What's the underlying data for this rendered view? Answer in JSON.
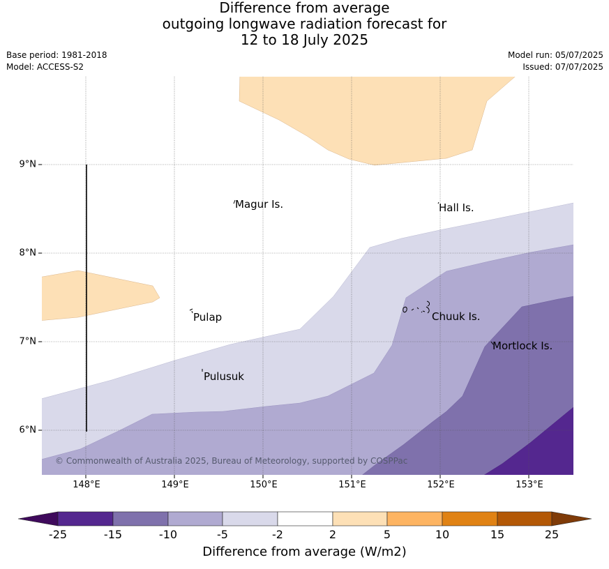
{
  "title": {
    "line1": "Difference from average",
    "line2": "outgoing longwave radiation forecast for",
    "line3": "12 to 18 July 2025"
  },
  "meta": {
    "base_period": "Base period: 1981-2018",
    "model": "Model: ACCESS-S2",
    "model_run": "Model run: 05/07/2025",
    "issued": "Issued: 07/07/2025"
  },
  "map": {
    "lon_range": [
      147.5,
      153.5
    ],
    "lat_range": [
      5.5,
      10.0
    ],
    "lat_ticks": [
      "9°N",
      "8°N",
      "7°N",
      "6°N"
    ],
    "lon_ticks": [
      "148°E",
      "149°E",
      "150°E",
      "151°E",
      "152°E",
      "153°E"
    ],
    "places": [
      {
        "name": "Magur Is.",
        "lon": 149.67,
        "lat": 8.55
      },
      {
        "name": "Hall Is.",
        "lon": 151.97,
        "lat": 8.51
      },
      {
        "name": "Pulap",
        "lon": 149.2,
        "lat": 7.26
      },
      {
        "name": "Chuuk Is.",
        "lon": 151.87,
        "lat": 7.27
      },
      {
        "name": "Mortlock Is.",
        "lon": 152.58,
        "lat": 6.94
      },
      {
        "name": "Pulusuk",
        "lon": 149.3,
        "lat": 6.6
      }
    ],
    "copyright": "© Commonwealth of Australia 2025, Bureau of Meteorology, supported by COSPPac"
  },
  "colorbar": {
    "ticks": [
      "-25",
      "-15",
      "-10",
      "-5",
      "-2",
      "2",
      "5",
      "10",
      "15",
      "25"
    ],
    "colors": [
      "#3f0a5c",
      "#54278f",
      "#7f71ac",
      "#b0aad1",
      "#d9d9ea",
      "#ffffff",
      "#fde0b6",
      "#fdb462",
      "#e08214",
      "#b35806",
      "#7f3b08"
    ],
    "label": "Difference from average (W/m2)"
  }
}
